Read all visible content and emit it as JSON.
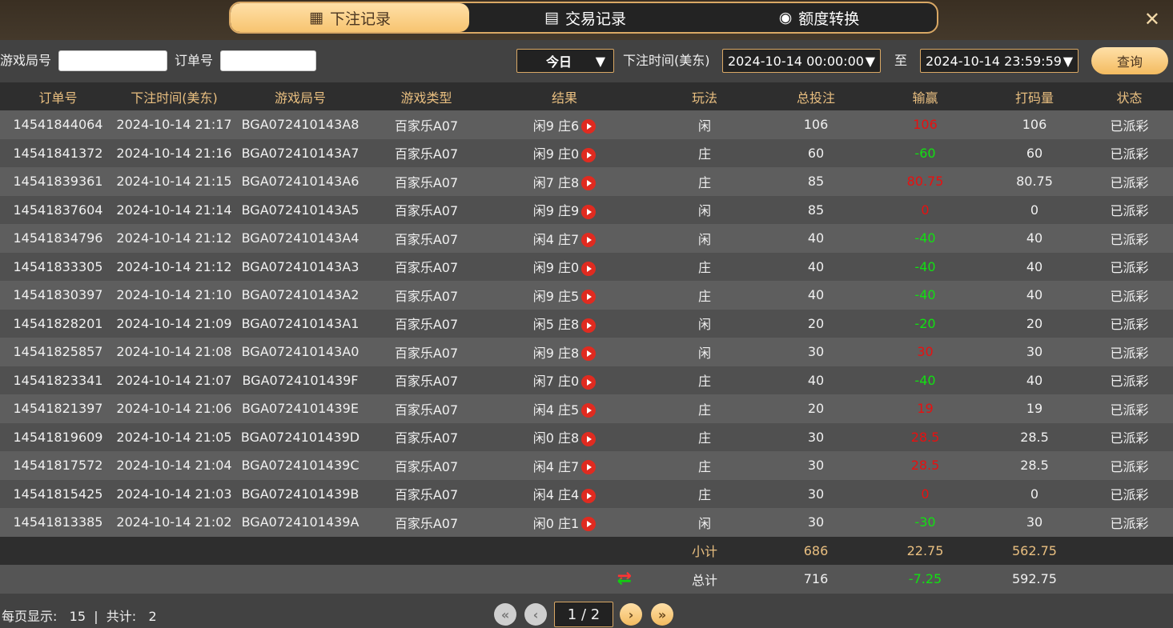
{
  "tabs": [
    {
      "label": "下注记录",
      "icon": "calendar-icon",
      "active": true
    },
    {
      "label": "交易记录",
      "icon": "clipboard-icon"
    },
    {
      "label": "额度转换",
      "icon": "coins-icon"
    }
  ],
  "close_icon": "✕",
  "filter": {
    "game_no_label": "游戏局号",
    "game_no_value": "",
    "order_no_label": "订单号",
    "order_no_value": "",
    "period": "今日",
    "time_label": "下注时间(美东)",
    "start": "2024-10-14 00:00:00",
    "to": "至",
    "end": "2024-10-14 23:59:59",
    "query": "查询"
  },
  "columns": [
    "订单号",
    "下注时间(美东)",
    "游戏局号",
    "游戏类型",
    "结果",
    "玩法",
    "总投注",
    "输赢",
    "打码量",
    "状态"
  ],
  "rows": [
    [
      "14541844064",
      "2024-10-14 21:17",
      "BGA072410143A8",
      "百家乐A07",
      "闲9 庄6",
      "闲",
      "106",
      "106",
      "106",
      "已派彩"
    ],
    [
      "14541841372",
      "2024-10-14 21:16",
      "BGA072410143A7",
      "百家乐A07",
      "闲9 庄0",
      "庄",
      "60",
      "-60",
      "60",
      "已派彩"
    ],
    [
      "14541839361",
      "2024-10-14 21:15",
      "BGA072410143A6",
      "百家乐A07",
      "闲7 庄8",
      "庄",
      "85",
      "80.75",
      "80.75",
      "已派彩"
    ],
    [
      "14541837604",
      "2024-10-14 21:14",
      "BGA072410143A5",
      "百家乐A07",
      "闲9 庄9",
      "闲",
      "85",
      "0",
      "0",
      "已派彩"
    ],
    [
      "14541834796",
      "2024-10-14 21:12",
      "BGA072410143A4",
      "百家乐A07",
      "闲4 庄7",
      "闲",
      "40",
      "-40",
      "40",
      "已派彩"
    ],
    [
      "14541833305",
      "2024-10-14 21:12",
      "BGA072410143A3",
      "百家乐A07",
      "闲9 庄0",
      "庄",
      "40",
      "-40",
      "40",
      "已派彩"
    ],
    [
      "14541830397",
      "2024-10-14 21:10",
      "BGA072410143A2",
      "百家乐A07",
      "闲9 庄5",
      "庄",
      "40",
      "-40",
      "40",
      "已派彩"
    ],
    [
      "14541828201",
      "2024-10-14 21:09",
      "BGA072410143A1",
      "百家乐A07",
      "闲5 庄8",
      "闲",
      "20",
      "-20",
      "20",
      "已派彩"
    ],
    [
      "14541825857",
      "2024-10-14 21:08",
      "BGA072410143A0",
      "百家乐A07",
      "闲9 庄8",
      "闲",
      "30",
      "30",
      "30",
      "已派彩"
    ],
    [
      "14541823341",
      "2024-10-14 21:07",
      "BGA0724101439F",
      "百家乐A07",
      "闲7 庄0",
      "庄",
      "40",
      "-40",
      "40",
      "已派彩"
    ],
    [
      "14541821397",
      "2024-10-14 21:06",
      "BGA0724101439E",
      "百家乐A07",
      "闲4 庄5",
      "庄",
      "20",
      "19",
      "19",
      "已派彩"
    ],
    [
      "14541819609",
      "2024-10-14 21:05",
      "BGA0724101439D",
      "百家乐A07",
      "闲0 庄8",
      "庄",
      "30",
      "28.5",
      "28.5",
      "已派彩"
    ],
    [
      "14541817572",
      "2024-10-14 21:04",
      "BGA0724101439C",
      "百家乐A07",
      "闲4 庄7",
      "庄",
      "30",
      "28.5",
      "28.5",
      "已派彩"
    ],
    [
      "14541815425",
      "2024-10-14 21:03",
      "BGA0724101439B",
      "百家乐A07",
      "闲4 庄4",
      "庄",
      "30",
      "0",
      "0",
      "已派彩"
    ],
    [
      "14541813385",
      "2024-10-14 21:02",
      "BGA0724101439A",
      "百家乐A07",
      "闲0 庄1",
      "闲",
      "30",
      "-30",
      "30",
      "已派彩"
    ]
  ],
  "subtotal": {
    "label": "小计",
    "bet": "686",
    "winloss": "22.75",
    "turnover": "562.75"
  },
  "total": {
    "label": "总计",
    "bet": "716",
    "winloss": "-7.25",
    "turnover": "592.75"
  },
  "footer": {
    "per_page_label": "每页显示:",
    "per_page": "15",
    "sep": "|",
    "total_label": "共计:",
    "total": "2",
    "page": "1 / 2"
  },
  "colors": {
    "accent": "#f3bb60",
    "win": "#e81010",
    "loss": "#12e012"
  }
}
